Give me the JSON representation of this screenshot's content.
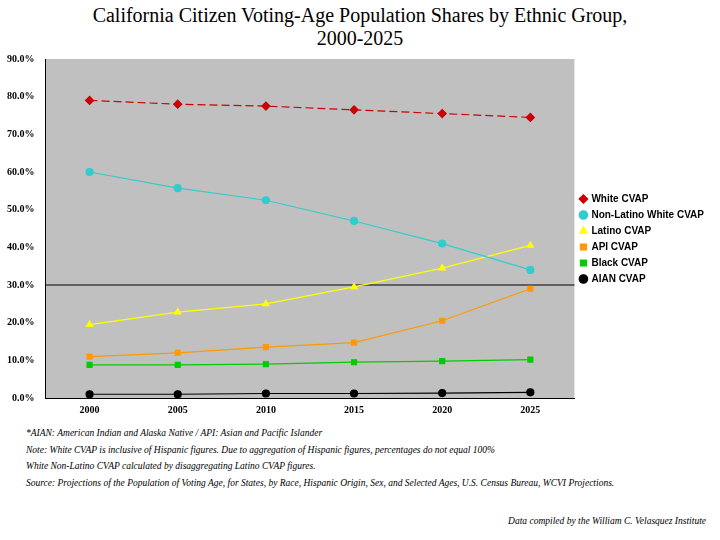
{
  "chart_data": {
    "type": "line",
    "title": "California Citizen Voting-Age Population Shares by Ethnic Group, 2000-2025",
    "categories": [
      "2000",
      "2005",
      "2010",
      "2015",
      "2020",
      "2025"
    ],
    "series": [
      {
        "name": "White CVAP",
        "color": "#cc0000",
        "marker": "diamond",
        "line_style": "dashed",
        "values": [
          79,
          78,
          77.5,
          76.5,
          75.5,
          74.5
        ]
      },
      {
        "name": "Non-Latino White CVAP",
        "color": "#33cccc",
        "marker": "circle",
        "line_style": "solid",
        "values": [
          60,
          55.7,
          52.5,
          47,
          41,
          34
        ]
      },
      {
        "name": "Latino CVAP",
        "color": "#ffff00",
        "marker": "triangle",
        "line_style": "solid",
        "values": [
          19.5,
          22.8,
          25,
          29.5,
          34.5,
          40.5
        ]
      },
      {
        "name": "API CVAP",
        "color": "#ff9900",
        "marker": "square",
        "line_style": "solid",
        "values": [
          11,
          12,
          13.5,
          14.7,
          20.5,
          29
        ]
      },
      {
        "name": "Black CVAP",
        "color": "#00cc00",
        "marker": "square",
        "line_style": "solid",
        "values": [
          8.8,
          8.8,
          9,
          9.5,
          9.8,
          10.2
        ]
      },
      {
        "name": "AIAN CVAP",
        "color": "#000000",
        "marker": "circle",
        "line_style": "solid",
        "values": [
          1,
          1,
          1.2,
          1.2,
          1.3,
          1.5
        ]
      }
    ],
    "ylim": [
      0,
      90
    ],
    "yticks": [
      {
        "value": 0,
        "label": "0.0%"
      },
      {
        "value": 10,
        "label": "10.0%"
      },
      {
        "value": 20,
        "label": "20.0%"
      },
      {
        "value": 30,
        "label": "30.0%"
      },
      {
        "value": 40,
        "label": "40.0%"
      },
      {
        "value": 50,
        "label": "50.0%"
      },
      {
        "value": 60,
        "label": "60.0%"
      },
      {
        "value": 70,
        "label": "70.0%"
      },
      {
        "value": 80,
        "label": "80.0%"
      },
      {
        "value": 90,
        "label": "90.0%"
      }
    ],
    "reference_line": 30,
    "grid": false,
    "legend": "right",
    "notes": [
      "*AIAN: American Indian and Alaska Native / API: Asian and Pacific Islander",
      "Note: White CVAP is inclusive of Hispanic figures. Due to aggregation of Hispanic figures, percentages do not equal 100%",
      "White Non-Latino CVAP calculated by disaggregating Latino CVAP figures.",
      "Source: Projections of the Population of Voting Age, for States, by Race, Hispanic Origin, Sex, and Selected Ages, U.S. Census Bureau, WCVI Projections."
    ],
    "credit": "Data compiled by the William C. Velasquez Institute"
  }
}
